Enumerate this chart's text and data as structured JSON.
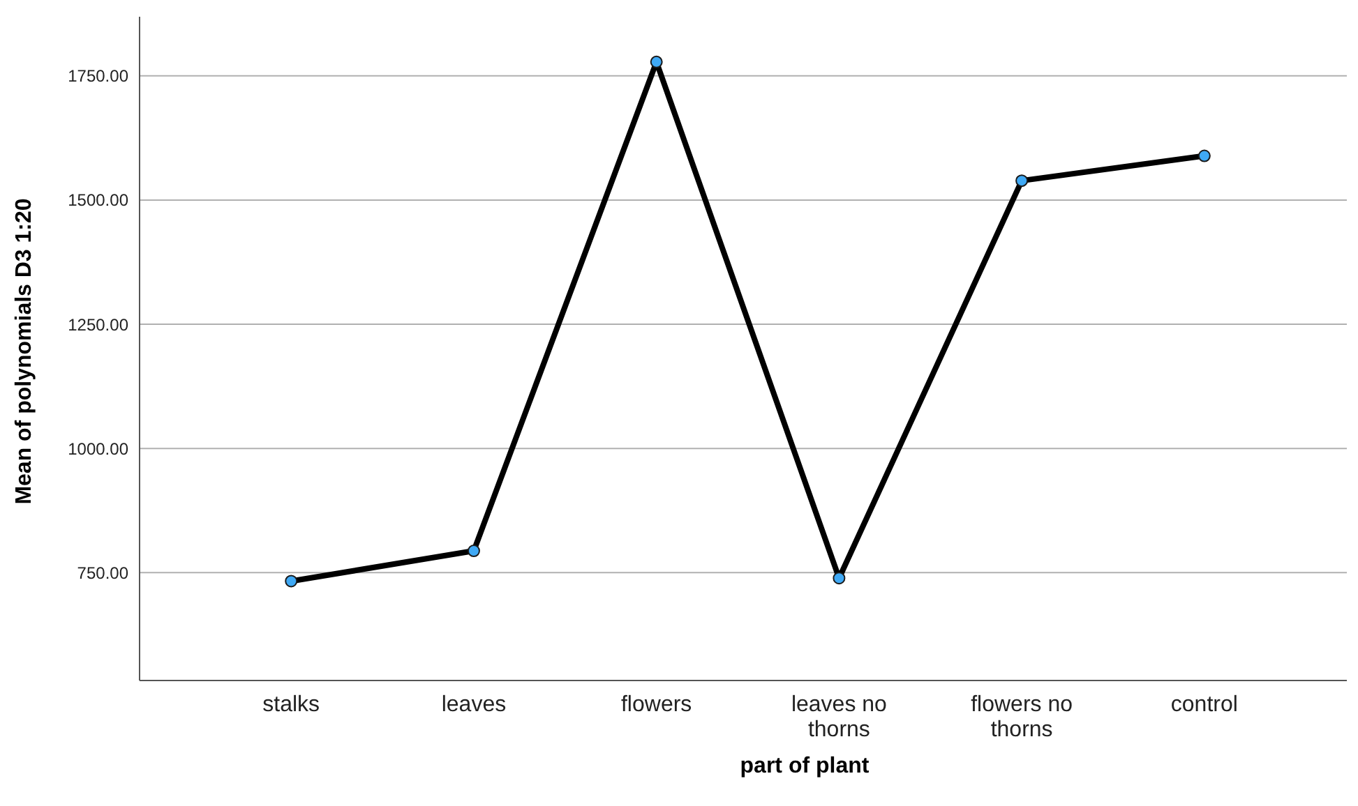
{
  "chart_data": {
    "type": "line",
    "xlabel": "part of plant",
    "ylabel": "Mean of polynomials D3 1:20",
    "categories": [
      "stalks",
      "leaves",
      "flowers",
      "leaves no thorns",
      "flowers no thorns",
      "control"
    ],
    "series": [
      {
        "color": "#000000",
        "values": [
          733,
          794,
          1778,
          739,
          1539,
          1589
        ]
      }
    ],
    "ylim": [
      533,
      1869
    ],
    "yticks": [
      {
        "value": 750,
        "label": "750.00"
      },
      {
        "value": 1000,
        "label": "1000.00"
      },
      {
        "value": 1250,
        "label": "1250.00"
      },
      {
        "value": 1500,
        "label": "1500.00"
      },
      {
        "value": 1750,
        "label": "1750.00"
      }
    ],
    "grid": "y",
    "marker": "circle",
    "line_style": "solid",
    "legend": false
  }
}
